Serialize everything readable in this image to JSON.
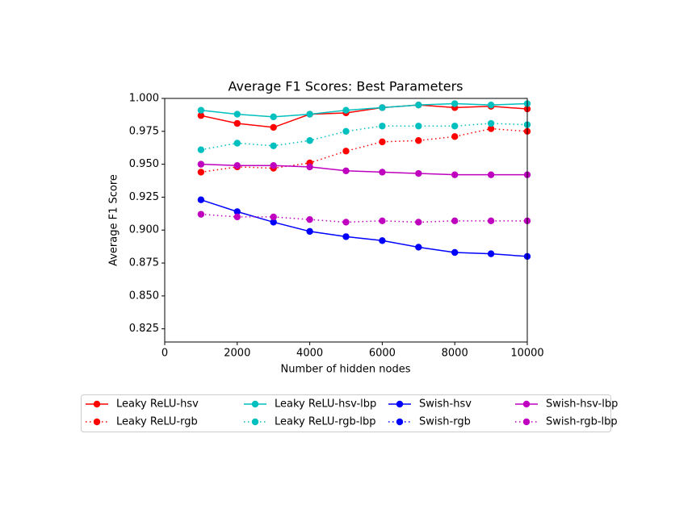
{
  "chart_data": {
    "type": "line",
    "title": "Average F1 Scores: Best Parameters",
    "xlabel": "Number of hidden nodes",
    "ylabel": "Average F1 Score",
    "x": [
      1000,
      2000,
      3000,
      4000,
      5000,
      6000,
      7000,
      8000,
      9000,
      10000
    ],
    "xlim": [
      0,
      10000
    ],
    "xticks": [
      0,
      2000,
      4000,
      6000,
      8000,
      10000
    ],
    "ylim": [
      0.815,
      1.0
    ],
    "yticks": [
      {
        "value": 0.825,
        "label": "0.825"
      },
      {
        "value": 0.85,
        "label": "0.850"
      },
      {
        "value": 0.875,
        "label": "0.875"
      },
      {
        "value": 0.9,
        "label": "0.900"
      },
      {
        "value": 0.925,
        "label": "0.925"
      },
      {
        "value": 0.95,
        "label": "0.950"
      },
      {
        "value": 0.975,
        "label": "0.975"
      },
      {
        "value": 1.0,
        "label": "1.000"
      }
    ],
    "legend": "below",
    "series": [
      {
        "name": "Leaky ReLU-hsv",
        "color": "#ff0000",
        "line_style": "solid",
        "values": [
          0.987,
          0.981,
          0.978,
          0.988,
          0.989,
          0.993,
          0.995,
          0.993,
          0.994,
          0.992
        ]
      },
      {
        "name": "Leaky ReLU-rgb",
        "color": "#ff0000",
        "line_style": "dotted",
        "values": [
          0.944,
          0.948,
          0.947,
          0.951,
          0.96,
          0.967,
          0.968,
          0.971,
          0.977,
          0.975
        ]
      },
      {
        "name": "Leaky ReLU-hsv-lbp",
        "color": "#00bfbf",
        "line_style": "solid",
        "values": [
          0.991,
          0.988,
          0.986,
          0.988,
          0.991,
          0.993,
          0.995,
          0.996,
          0.995,
          0.996
        ]
      },
      {
        "name": "Leaky ReLU-rgb-lbp",
        "color": "#00bfbf",
        "line_style": "dotted",
        "values": [
          0.961,
          0.966,
          0.964,
          0.968,
          0.975,
          0.979,
          0.979,
          0.979,
          0.981,
          0.98
        ]
      },
      {
        "name": "Swish-hsv",
        "color": "#0000ff",
        "line_style": "solid",
        "values": [
          0.923,
          0.914,
          0.906,
          0.899,
          0.895,
          0.892,
          0.887,
          0.883,
          0.882,
          0.88
        ]
      },
      {
        "name": "Swish-rgb",
        "color": "#0000ff",
        "line_style": "dotted",
        "values": [
          null,
          null,
          null,
          null,
          null,
          null,
          null,
          null,
          null,
          null
        ]
      },
      {
        "name": "Swish-hsv-lbp",
        "color": "#bf00bf",
        "line_style": "solid",
        "values": [
          0.95,
          0.949,
          0.949,
          0.948,
          0.945,
          0.944,
          0.943,
          0.942,
          0.942,
          0.942
        ]
      },
      {
        "name": "Swish-rgb-lbp",
        "color": "#bf00bf",
        "line_style": "dotted",
        "values": [
          0.912,
          0.91,
          0.91,
          0.908,
          0.906,
          0.907,
          0.906,
          0.907,
          0.907,
          0.907
        ]
      }
    ]
  }
}
